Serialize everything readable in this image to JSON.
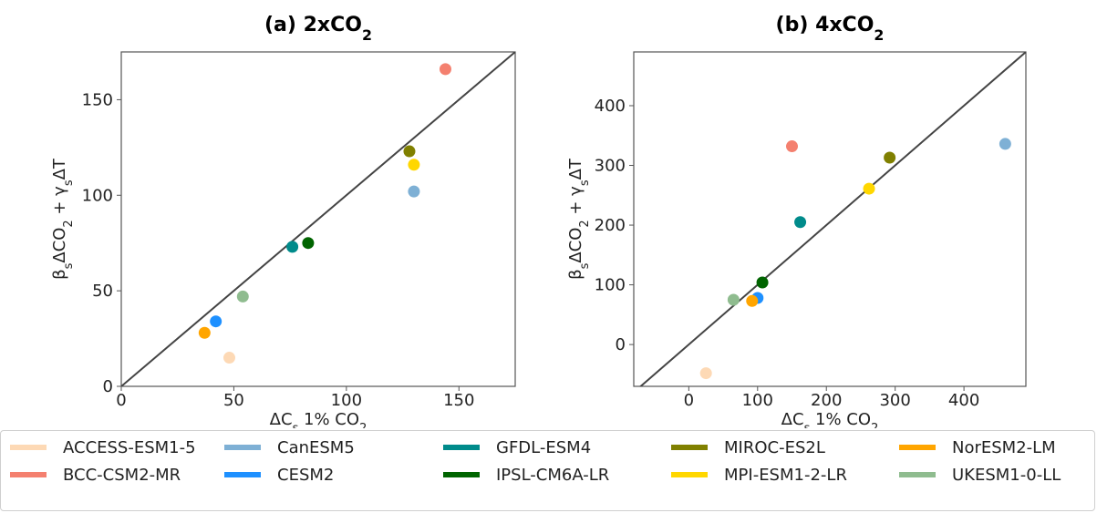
{
  "chart_data": [
    {
      "type": "scatter",
      "title": "(a) 2xCO",
      "title_sub": "2",
      "xlabel": "ΔC",
      "xlabel_sub": "s",
      "xlabel_rest": " 1% CO",
      "xlabel_sub2": "2",
      "ylabel": "β",
      "ylabel_sub": "s",
      "ylabel_mid": "ΔCO",
      "ylabel_sub2": "2",
      "ylabel_plus": " + γ",
      "ylabel_sub3": "s",
      "ylabel_end": "ΔT",
      "xlim": [
        0,
        175
      ],
      "ylim": [
        0,
        175
      ],
      "xticks": [
        0,
        50,
        100,
        150
      ],
      "yticks": [
        0,
        50,
        100,
        150
      ],
      "one_to_one_line": true,
      "grid": false,
      "points": [
        {
          "model": "ACCESS-ESM1-5",
          "x": 48,
          "y": 15
        },
        {
          "model": "BCC-CSM2-MR",
          "x": 144,
          "y": 166
        },
        {
          "model": "CanESM5",
          "x": 130,
          "y": 102
        },
        {
          "model": "CESM2",
          "x": 42,
          "y": 34
        },
        {
          "model": "GFDL-ESM4",
          "x": 76,
          "y": 73
        },
        {
          "model": "IPSL-CM6A-LR",
          "x": 83,
          "y": 75
        },
        {
          "model": "MIROC-ES2L",
          "x": 128,
          "y": 123
        },
        {
          "model": "MPI-ESM1-2-LR",
          "x": 130,
          "y": 116
        },
        {
          "model": "NorESM2-LM",
          "x": 37,
          "y": 28
        },
        {
          "model": "UKESM1-0-LL",
          "x": 54,
          "y": 47
        }
      ]
    },
    {
      "type": "scatter",
      "title": "(b) 4xCO",
      "title_sub": "2",
      "xlabel": "ΔC",
      "xlabel_sub": "s",
      "xlabel_rest": " 1% CO",
      "xlabel_sub2": "2",
      "ylabel": "β",
      "ylabel_sub": "s",
      "ylabel_mid": "ΔCO",
      "ylabel_sub2": "2",
      "ylabel_plus": " + γ",
      "ylabel_sub3": "s",
      "ylabel_end": "ΔT",
      "xlim": [
        -80,
        490
      ],
      "ylim": [
        -70,
        490
      ],
      "xticks": [
        0,
        100,
        200,
        300,
        400
      ],
      "yticks": [
        0,
        100,
        200,
        300,
        400
      ],
      "one_to_one_line": true,
      "grid": false,
      "points": [
        {
          "model": "ACCESS-ESM1-5",
          "x": 25,
          "y": -48
        },
        {
          "model": "BCC-CSM2-MR",
          "x": 150,
          "y": 332
        },
        {
          "model": "CanESM5",
          "x": 460,
          "y": 336
        },
        {
          "model": "CESM2",
          "x": 100,
          "y": 78
        },
        {
          "model": "GFDL-ESM4",
          "x": 162,
          "y": 205
        },
        {
          "model": "IPSL-CM6A-LR",
          "x": 107,
          "y": 104
        },
        {
          "model": "MIROC-ES2L",
          "x": 292,
          "y": 313
        },
        {
          "model": "MPI-ESM1-2-LR",
          "x": 262,
          "y": 261
        },
        {
          "model": "NorESM2-LM",
          "x": 92,
          "y": 73
        },
        {
          "model": "UKESM1-0-LL",
          "x": 65,
          "y": 75
        }
      ]
    }
  ],
  "legend": {
    "placement": "bottom",
    "items": [
      {
        "label": "ACCESS-ESM1-5",
        "color": "#FDD9B5"
      },
      {
        "label": "BCC-CSM2-MR",
        "color": "#F4806F"
      },
      {
        "label": "CanESM5",
        "color": "#7EB0D5"
      },
      {
        "label": "CESM2",
        "color": "#1E90FF"
      },
      {
        "label": "GFDL-ESM4",
        "color": "#008B8B"
      },
      {
        "label": "IPSL-CM6A-LR",
        "color": "#006400"
      },
      {
        "label": "MIROC-ES2L",
        "color": "#808000"
      },
      {
        "label": "MPI-ESM1-2-LR",
        "color": "#FFD700"
      },
      {
        "label": "NorESM2-LM",
        "color": "#FFA500"
      },
      {
        "label": "UKESM1-0-LL",
        "color": "#8FBC8F"
      }
    ]
  }
}
